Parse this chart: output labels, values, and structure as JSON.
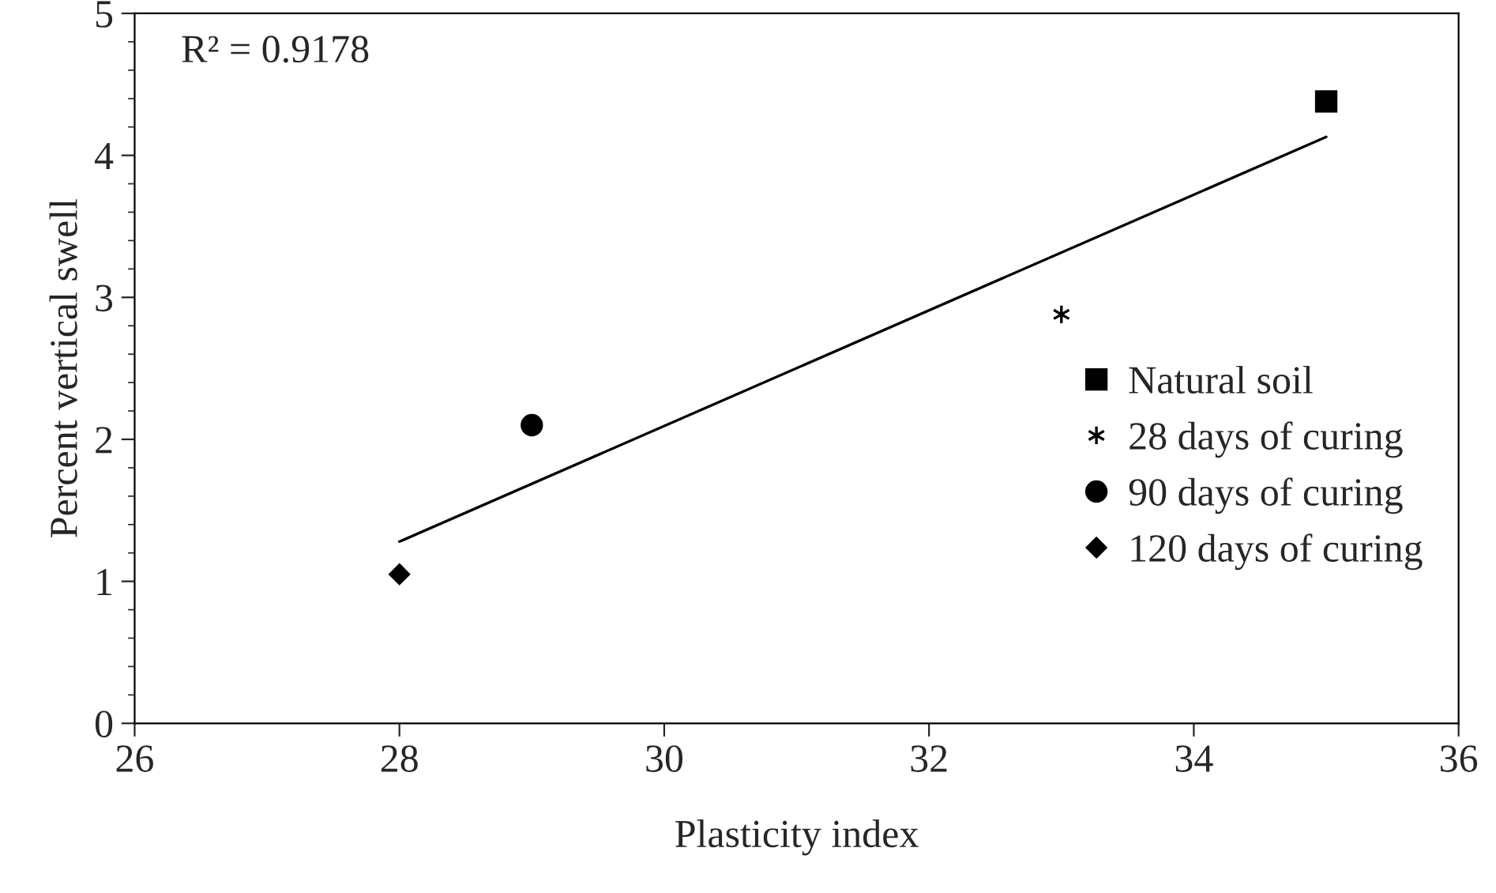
{
  "chart_data": {
    "type": "scatter",
    "xlabel": "Plasticity index",
    "ylabel": "Percent vertical swell",
    "xlim": [
      26,
      36
    ],
    "xticks": [
      26,
      28,
      30,
      32,
      34,
      36
    ],
    "ylim": [
      0,
      5
    ],
    "yticks": [
      0,
      1,
      2,
      3,
      4,
      5
    ],
    "grid": false,
    "legend": "right",
    "annotations": [
      "R² = 0.9178"
    ],
    "series": [
      {
        "name": "Natural soil",
        "color": "#000000",
        "marker": "square",
        "x": [
          35
        ],
        "values": [
          4.38
        ]
      },
      {
        "name": "28 days of curing",
        "color": "#000000",
        "marker": "cross",
        "x": [
          33
        ],
        "values": [
          2.88
        ]
      },
      {
        "name": "90 days of curing",
        "color": "#000000",
        "marker": "circle",
        "x": [
          29
        ],
        "values": [
          2.1
        ]
      },
      {
        "name": "120 days of curing",
        "color": "#000000",
        "marker": "diamond",
        "x": [
          28
        ],
        "values": [
          1.05
        ]
      },
      {
        "type": "line",
        "color": "#000000",
        "marker": "none",
        "line_style": "solid",
        "x": [
          28,
          35
        ],
        "values": [
          1.28,
          4.13
        ]
      }
    ]
  }
}
